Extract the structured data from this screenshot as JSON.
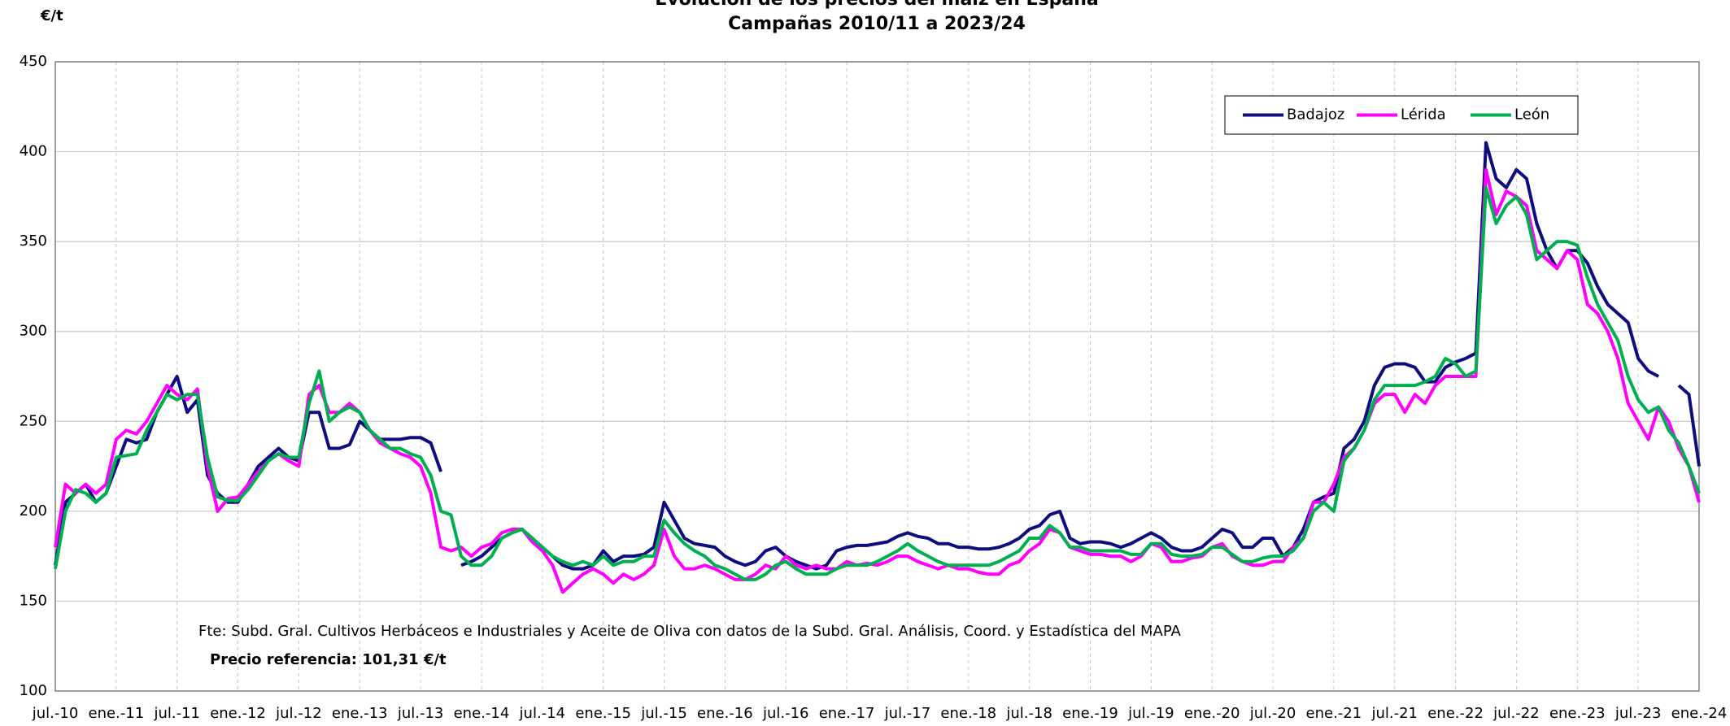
{
  "chart_data": {
    "type": "line",
    "title": "Evolución de los precios del maíz en España",
    "subtitle": "Campañas 2010/11 a 2023/24",
    "y_label": "€/t",
    "annotations": [
      "Fte: Subd. Gral. Cultivos Herbáceos e Industriales y Aceite de Oliva con datos de la Subd. Gral. Análisis, Coord. y Estadística del MAPA",
      "Precio referencia: 101,31 €/t"
    ],
    "categories": [
      "jul.-10",
      null,
      null,
      null,
      null,
      null,
      "ene.-11",
      null,
      null,
      null,
      null,
      null,
      "jul.-11",
      null,
      null,
      null,
      null,
      null,
      "ene.-12",
      null,
      null,
      null,
      null,
      null,
      "jul.-12",
      null,
      null,
      null,
      null,
      null,
      "ene.-13",
      null,
      null,
      null,
      null,
      null,
      "jul.-13",
      null,
      null,
      null,
      null,
      null,
      "ene.-14",
      null,
      null,
      null,
      null,
      null,
      "jul.-14",
      null,
      null,
      null,
      null,
      null,
      "ene.-15",
      null,
      null,
      null,
      null,
      null,
      "jul.-15",
      null,
      null,
      null,
      null,
      null,
      "ene.-16",
      null,
      null,
      null,
      null,
      null,
      "jul.-16",
      null,
      null,
      null,
      null,
      null,
      "ene.-17",
      null,
      null,
      null,
      null,
      null,
      "jul.-17",
      null,
      null,
      null,
      null,
      null,
      "ene.-18",
      null,
      null,
      null,
      null,
      null,
      "jul.-18",
      null,
      null,
      null,
      null,
      null,
      "ene.-19",
      null,
      null,
      null,
      null,
      null,
      "jul.-19",
      null,
      null,
      null,
      null,
      null,
      "ene.-20",
      null,
      null,
      null,
      null,
      null,
      "jul.-20",
      null,
      null,
      null,
      null,
      null,
      "ene.-21",
      null,
      null,
      null,
      null,
      null,
      "jul.-21",
      null,
      null,
      null,
      null,
      null,
      "ene.-22",
      null,
      null,
      null,
      null,
      null,
      "jul.-22",
      null,
      null,
      null,
      null,
      null,
      "ene.-23",
      null,
      null,
      null,
      null,
      null,
      "jul.-23",
      null,
      null,
      null,
      null,
      null,
      "ene.-24"
    ],
    "series": [
      {
        "name": "Badajoz",
        "color": "#0d0d80",
        "values": [
          170,
          205,
          210,
          215,
          205,
          210,
          225,
          240,
          238,
          240,
          255,
          265,
          275,
          255,
          262,
          220,
          210,
          205,
          205,
          215,
          225,
          230,
          235,
          230,
          228,
          255,
          255,
          235,
          235,
          237,
          250,
          245,
          240,
          240,
          240,
          241,
          241,
          238,
          222,
          null,
          170,
          172,
          175,
          180,
          185,
          188,
          190,
          185,
          180,
          175,
          170,
          168,
          168,
          170,
          178,
          172,
          175,
          175,
          176,
          180,
          205,
          195,
          185,
          182,
          181,
          180,
          175,
          172,
          170,
          172,
          178,
          180,
          175,
          172,
          170,
          168,
          170,
          178,
          180,
          181,
          181,
          182,
          183,
          186,
          188,
          186,
          185,
          182,
          182,
          180,
          180,
          179,
          179,
          180,
          182,
          185,
          190,
          192,
          198,
          200,
          185,
          182,
          183,
          183,
          182,
          180,
          182,
          185,
          188,
          185,
          180,
          178,
          178,
          180,
          185,
          190,
          188,
          180,
          180,
          185,
          185,
          175,
          180,
          190,
          205,
          208,
          210,
          235,
          240,
          250,
          270,
          280,
          282,
          282,
          280,
          272,
          272,
          280,
          283,
          285,
          288,
          405,
          385,
          380,
          390,
          385,
          360,
          345,
          335,
          345,
          345,
          338,
          325,
          315,
          310,
          305,
          285,
          278,
          275,
          null,
          270,
          265,
          225
        ]
      },
      {
        "name": "Lérida",
        "color": "#ff00ff",
        "values": [
          180,
          215,
          210,
          215,
          210,
          215,
          240,
          245,
          243,
          250,
          260,
          270,
          265,
          262,
          268,
          225,
          200,
          207,
          208,
          215,
          222,
          228,
          232,
          228,
          225,
          265,
          270,
          255,
          255,
          260,
          255,
          245,
          238,
          235,
          232,
          230,
          225,
          210,
          180,
          178,
          180,
          175,
          180,
          182,
          188,
          190,
          190,
          183,
          178,
          170,
          155,
          160,
          165,
          168,
          165,
          160,
          165,
          162,
          165,
          170,
          190,
          175,
          168,
          168,
          170,
          168,
          165,
          162,
          162,
          165,
          170,
          168,
          175,
          170,
          168,
          170,
          168,
          168,
          172,
          170,
          171,
          170,
          172,
          175,
          175,
          172,
          170,
          168,
          170,
          168,
          168,
          166,
          165,
          165,
          170,
          172,
          178,
          182,
          190,
          188,
          180,
          178,
          176,
          176,
          175,
          175,
          172,
          175,
          182,
          180,
          172,
          172,
          174,
          175,
          180,
          182,
          175,
          172,
          170,
          170,
          172,
          172,
          180,
          185,
          205,
          205,
          215,
          230,
          235,
          245,
          260,
          265,
          265,
          255,
          265,
          260,
          270,
          275,
          275,
          275,
          275,
          390,
          365,
          378,
          375,
          370,
          345,
          340,
          335,
          345,
          340,
          315,
          310,
          300,
          285,
          260,
          250,
          240,
          258,
          250,
          235,
          225,
          205
        ]
      },
      {
        "name": "León",
        "color": "#00b050",
        "values": [
          168,
          200,
          212,
          210,
          205,
          210,
          230,
          231,
          232,
          245,
          255,
          265,
          262,
          265,
          265,
          230,
          208,
          206,
          206,
          212,
          220,
          228,
          232,
          230,
          230,
          260,
          278,
          250,
          255,
          258,
          255,
          245,
          240,
          235,
          235,
          232,
          230,
          220,
          200,
          198,
          175,
          170,
          170,
          175,
          185,
          188,
          190,
          185,
          180,
          175,
          172,
          170,
          172,
          170,
          175,
          170,
          172,
          172,
          175,
          175,
          195,
          188,
          182,
          178,
          175,
          170,
          168,
          165,
          162,
          162,
          165,
          170,
          172,
          168,
          165,
          165,
          165,
          168,
          170,
          170,
          170,
          172,
          175,
          178,
          182,
          178,
          175,
          172,
          170,
          170,
          170,
          170,
          170,
          172,
          175,
          178,
          185,
          185,
          192,
          188,
          180,
          180,
          178,
          178,
          178,
          178,
          176,
          176,
          182,
          182,
          176,
          175,
          175,
          176,
          180,
          180,
          176,
          172,
          172,
          174,
          175,
          175,
          178,
          185,
          200,
          205,
          200,
          228,
          235,
          245,
          262,
          270,
          270,
          270,
          270,
          272,
          275,
          285,
          282,
          275,
          278,
          380,
          360,
          370,
          375,
          365,
          340,
          345,
          350,
          350,
          348,
          330,
          315,
          305,
          295,
          275,
          262,
          255,
          258,
          245,
          238,
          225,
          210
        ]
      }
    ],
    "ylim": [
      100,
      450
    ],
    "yticks": [
      100,
      150,
      200,
      250,
      300,
      350,
      400,
      450
    ],
    "grid": true,
    "legend_position": "upper-right"
  }
}
